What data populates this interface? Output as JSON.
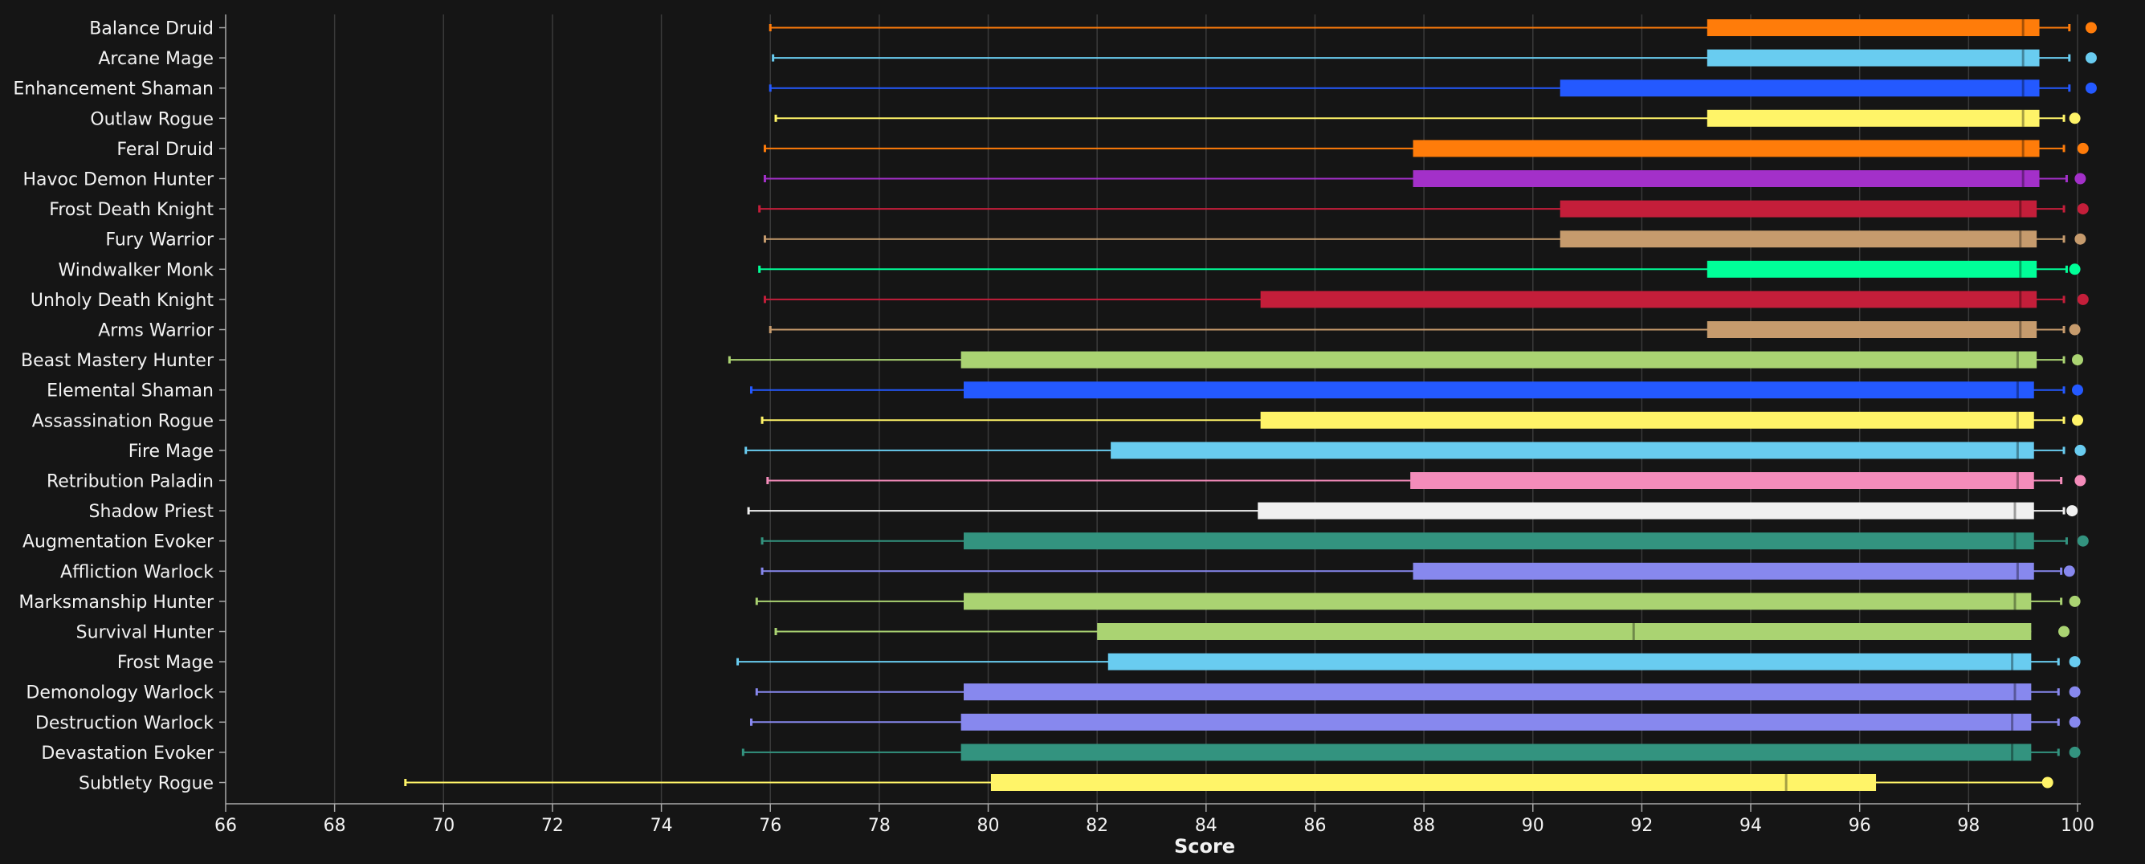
{
  "chart_data": {
    "type": "box",
    "xlabel": "Score",
    "xlim": [
      66,
      100
    ],
    "xticks": [
      66,
      68,
      70,
      72,
      74,
      76,
      78,
      80,
      82,
      84,
      86,
      88,
      90,
      92,
      94,
      96,
      98,
      100
    ],
    "grid": "vertical",
    "legend": "none",
    "series": [
      {
        "name": "Balance Druid",
        "color": "#FF7C0A",
        "min": 76.0,
        "q1": 93.2,
        "median": 99.0,
        "q3": 99.3,
        "max": 99.85,
        "outliers": [
          100.25
        ]
      },
      {
        "name": "Arcane Mage",
        "color": "#69CCF0",
        "min": 76.05,
        "q1": 93.2,
        "median": 99.0,
        "q3": 99.3,
        "max": 99.85,
        "outliers": [
          100.25
        ]
      },
      {
        "name": "Enhancement Shaman",
        "color": "#2459FF",
        "min": 76.0,
        "q1": 90.5,
        "median": 99.0,
        "q3": 99.3,
        "max": 99.85,
        "outliers": [
          100.25
        ]
      },
      {
        "name": "Outlaw Rogue",
        "color": "#FFF468",
        "min": 76.1,
        "q1": 93.2,
        "median": 99.0,
        "q3": 99.3,
        "max": 99.75,
        "outliers": [
          99.95
        ]
      },
      {
        "name": "Feral Druid",
        "color": "#FF7C0A",
        "min": 75.9,
        "q1": 87.8,
        "median": 99.0,
        "q3": 99.3,
        "max": 99.75,
        "outliers": [
          100.1
        ]
      },
      {
        "name": "Havoc Demon Hunter",
        "color": "#A330C9",
        "min": 75.9,
        "q1": 87.8,
        "median": 99.0,
        "q3": 99.3,
        "max": 99.8,
        "outliers": [
          100.05
        ]
      },
      {
        "name": "Frost Death Knight",
        "color": "#C41E3A",
        "min": 75.8,
        "q1": 90.5,
        "median": 98.95,
        "q3": 99.25,
        "max": 99.75,
        "outliers": [
          100.1
        ]
      },
      {
        "name": "Fury Warrior",
        "color": "#C69B6D",
        "min": 75.9,
        "q1": 90.5,
        "median": 98.95,
        "q3": 99.25,
        "max": 99.75,
        "outliers": [
          100.05
        ]
      },
      {
        "name": "Windwalker Monk",
        "color": "#00FF98",
        "min": 75.8,
        "q1": 93.2,
        "median": 98.95,
        "q3": 99.25,
        "max": 99.8,
        "outliers": [
          99.95
        ]
      },
      {
        "name": "Unholy Death Knight",
        "color": "#C41E3A",
        "min": 75.9,
        "q1": 85.0,
        "median": 98.95,
        "q3": 99.25,
        "max": 99.75,
        "outliers": [
          100.1
        ]
      },
      {
        "name": "Arms Warrior",
        "color": "#C69B6D",
        "min": 76.0,
        "q1": 93.2,
        "median": 98.95,
        "q3": 99.25,
        "max": 99.75,
        "outliers": [
          99.95
        ]
      },
      {
        "name": "Beast Mastery Hunter",
        "color": "#AAD372",
        "min": 75.25,
        "q1": 79.5,
        "median": 98.9,
        "q3": 99.25,
        "max": 99.75,
        "outliers": [
          100.0
        ]
      },
      {
        "name": "Elemental Shaman",
        "color": "#2459FF",
        "min": 75.65,
        "q1": 79.55,
        "median": 98.9,
        "q3": 99.2,
        "max": 99.75,
        "outliers": [
          100.0
        ]
      },
      {
        "name": "Assassination Rogue",
        "color": "#FFF468",
        "min": 75.85,
        "q1": 85.0,
        "median": 98.9,
        "q3": 99.2,
        "max": 99.75,
        "outliers": [
          100.0
        ]
      },
      {
        "name": "Fire Mage",
        "color": "#69CCF0",
        "min": 75.55,
        "q1": 82.25,
        "median": 98.9,
        "q3": 99.2,
        "max": 99.75,
        "outliers": [
          100.05
        ]
      },
      {
        "name": "Retribution Paladin",
        "color": "#F48CBA",
        "min": 75.95,
        "q1": 87.75,
        "median": 98.9,
        "q3": 99.2,
        "max": 99.7,
        "outliers": [
          100.05
        ]
      },
      {
        "name": "Shadow Priest",
        "color": "#F0F0F0",
        "min": 75.6,
        "q1": 84.95,
        "median": 98.85,
        "q3": 99.2,
        "max": 99.75,
        "outliers": [
          99.9
        ]
      },
      {
        "name": "Augmentation Evoker",
        "color": "#33937F",
        "min": 75.85,
        "q1": 79.55,
        "median": 98.85,
        "q3": 99.2,
        "max": 99.8,
        "outliers": [
          100.1
        ]
      },
      {
        "name": "Affliction Warlock",
        "color": "#8788EE",
        "min": 75.85,
        "q1": 87.8,
        "median": 98.9,
        "q3": 99.2,
        "max": 99.7,
        "outliers": [
          99.85
        ]
      },
      {
        "name": "Marksmanship Hunter",
        "color": "#AAD372",
        "min": 75.75,
        "q1": 79.55,
        "median": 98.85,
        "q3": 99.15,
        "max": 99.7,
        "outliers": [
          99.95
        ]
      },
      {
        "name": "Survival Hunter",
        "color": "#AAD372",
        "min": 76.1,
        "q1": 82.0,
        "median": 91.85,
        "q3": 99.15,
        "max": null,
        "outliers": [
          99.75
        ]
      },
      {
        "name": "Frost Mage",
        "color": "#69CCF0",
        "min": 75.4,
        "q1": 82.2,
        "median": 98.8,
        "q3": 99.15,
        "max": 99.65,
        "outliers": [
          99.95
        ]
      },
      {
        "name": "Demonology Warlock",
        "color": "#8788EE",
        "min": 75.75,
        "q1": 79.55,
        "median": 98.85,
        "q3": 99.15,
        "max": 99.65,
        "outliers": [
          99.95
        ]
      },
      {
        "name": "Destruction Warlock",
        "color": "#8788EE",
        "min": 75.65,
        "q1": 79.5,
        "median": 98.8,
        "q3": 99.15,
        "max": 99.65,
        "outliers": [
          99.95
        ]
      },
      {
        "name": "Devastation Evoker",
        "color": "#33937F",
        "min": 75.5,
        "q1": 79.5,
        "median": 98.8,
        "q3": 99.15,
        "max": 99.65,
        "outliers": [
          99.95
        ]
      },
      {
        "name": "Subtlety Rogue",
        "color": "#FFF468",
        "min": 69.3,
        "q1": 80.05,
        "median": 94.65,
        "q3": 96.3,
        "max": 99.45,
        "outliers": [
          99.45
        ]
      }
    ]
  },
  "colors": {
    "background": "#151515",
    "gridline": "#3a3a3a",
    "axis": "#aaaaaa",
    "text": "#f2f2f2"
  }
}
